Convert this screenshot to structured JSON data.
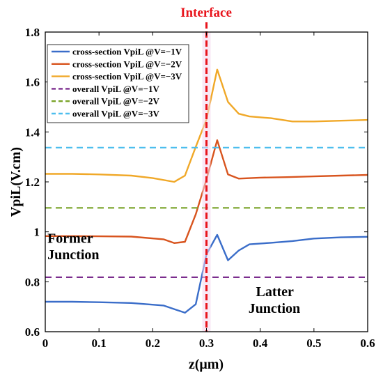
{
  "chart_data": {
    "type": "line",
    "xlabel": "z(μm)",
    "ylabel": "VpiL(V.cm)",
    "xlim": [
      0,
      0.6
    ],
    "ylim": [
      0.6,
      1.8
    ],
    "x_ticks": [
      "0",
      "0.1",
      "0.2",
      "0.3",
      "0.4",
      "0.5",
      "0.6"
    ],
    "y_ticks": [
      "0.6",
      "0.8",
      "1",
      "1.2",
      "1.4",
      "1.6",
      "1.8"
    ],
    "grid": false,
    "legend_position": "top-left",
    "interface": {
      "x": 0.3,
      "label": "Interface",
      "color": "#e8141c"
    },
    "annotations": [
      {
        "text": "Former",
        "x": 0.004,
        "y": 0.956
      },
      {
        "text": "Junction",
        "x": 0.004,
        "y": 0.89
      },
      {
        "text": "Latter",
        "x": 0.392,
        "y": 0.742
      },
      {
        "text": "Junction",
        "x": 0.378,
        "y": 0.675
      }
    ],
    "series": [
      {
        "name": "cross-section VpiL @V=−1V",
        "color": "#3a6dc9",
        "dash": false,
        "x": [
          0,
          0.05,
          0.1,
          0.16,
          0.22,
          0.26,
          0.28,
          0.3,
          0.32,
          0.34,
          0.36,
          0.38,
          0.42,
          0.46,
          0.5,
          0.55,
          0.6
        ],
        "y": [
          0.72,
          0.72,
          0.718,
          0.715,
          0.705,
          0.676,
          0.71,
          0.91,
          0.988,
          0.886,
          0.925,
          0.95,
          0.956,
          0.963,
          0.973,
          0.978,
          0.98
        ]
      },
      {
        "name": "cross-section VpiL @V=−2V",
        "color": "#d8541e",
        "dash": false,
        "x": [
          0,
          0.05,
          0.1,
          0.16,
          0.22,
          0.24,
          0.26,
          0.28,
          0.3,
          0.32,
          0.34,
          0.36,
          0.4,
          0.45,
          0.5,
          0.55,
          0.6
        ],
        "y": [
          0.983,
          0.983,
          0.982,
          0.981,
          0.97,
          0.955,
          0.96,
          1.07,
          1.21,
          1.367,
          1.23,
          1.213,
          1.217,
          1.219,
          1.222,
          1.225,
          1.228
        ]
      },
      {
        "name": "cross-section VpiL @V=−3V",
        "color": "#f0a828",
        "dash": false,
        "x": [
          0,
          0.05,
          0.1,
          0.16,
          0.2,
          0.24,
          0.26,
          0.28,
          0.3,
          0.32,
          0.34,
          0.36,
          0.38,
          0.42,
          0.46,
          0.5,
          0.55,
          0.6
        ],
        "y": [
          1.232,
          1.232,
          1.23,
          1.225,
          1.215,
          1.2,
          1.225,
          1.34,
          1.45,
          1.65,
          1.52,
          1.473,
          1.462,
          1.455,
          1.442,
          1.442,
          1.445,
          1.448
        ]
      },
      {
        "name": "overall VpiL @V=−1V",
        "color": "#7b2d8e",
        "dash": true,
        "x": [
          0,
          0.6
        ],
        "y": [
          0.818,
          0.818
        ]
      },
      {
        "name": "overall VpiL @V=−2V",
        "color": "#7aa329",
        "dash": true,
        "x": [
          0,
          0.6
        ],
        "y": [
          1.096,
          1.096
        ]
      },
      {
        "name": "overall VpiL @V=−3V",
        "color": "#4dbeee",
        "dash": true,
        "x": [
          0,
          0.6
        ],
        "y": [
          1.337,
          1.337
        ]
      }
    ]
  }
}
